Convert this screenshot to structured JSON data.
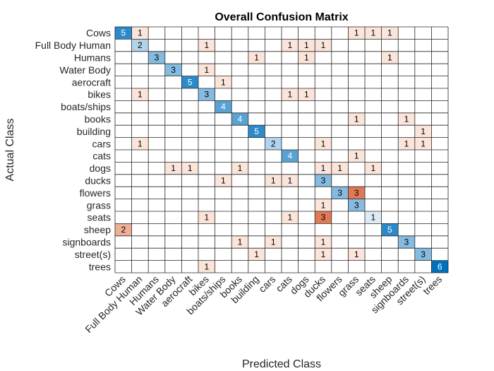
{
  "chart_data": {
    "type": "heatmap",
    "title": "Overall Confusion Matrix",
    "xlabel": "Predicted Class",
    "ylabel": "Actual Class",
    "classes": [
      "Cows",
      "Full Body Human",
      "Humans",
      "Water Body",
      "aerocraft",
      "bikes",
      "boats/ships",
      "books",
      "building",
      "cars",
      "cats",
      "dogs",
      "ducks",
      "flowers",
      "grass",
      "seats",
      "sheep",
      "signboards",
      "street(s)",
      "trees"
    ],
    "grid": true,
    "colors": {
      "diagonal_max": "#0072bd",
      "diagonal_min": "#deebf7",
      "offdiag_low": "#fbe4da",
      "offdiag_high": "#e07a55"
    },
    "matrix": [
      [
        5,
        1,
        0,
        0,
        0,
        0,
        0,
        0,
        0,
        0,
        0,
        0,
        0,
        0,
        1,
        1,
        1,
        0,
        0,
        0
      ],
      [
        0,
        2,
        0,
        0,
        0,
        1,
        0,
        0,
        0,
        0,
        1,
        1,
        1,
        0,
        0,
        0,
        0,
        0,
        0,
        0
      ],
      [
        0,
        0,
        3,
        0,
        0,
        0,
        0,
        0,
        1,
        0,
        0,
        1,
        0,
        0,
        0,
        0,
        1,
        0,
        0,
        0
      ],
      [
        0,
        0,
        0,
        3,
        0,
        1,
        0,
        0,
        0,
        0,
        0,
        0,
        0,
        0,
        0,
        0,
        0,
        0,
        0,
        0
      ],
      [
        0,
        0,
        0,
        0,
        5,
        0,
        1,
        0,
        0,
        0,
        0,
        0,
        0,
        0,
        0,
        0,
        0,
        0,
        0,
        0
      ],
      [
        0,
        1,
        0,
        0,
        0,
        3,
        0,
        0,
        0,
        0,
        1,
        1,
        0,
        0,
        0,
        0,
        0,
        0,
        0,
        0
      ],
      [
        0,
        0,
        0,
        0,
        0,
        0,
        4,
        0,
        0,
        0,
        0,
        0,
        0,
        0,
        0,
        0,
        0,
        0,
        0,
        0
      ],
      [
        0,
        0,
        0,
        0,
        0,
        0,
        0,
        4,
        0,
        0,
        0,
        0,
        0,
        0,
        1,
        0,
        0,
        1,
        0,
        0
      ],
      [
        0,
        0,
        0,
        0,
        0,
        0,
        0,
        0,
        5,
        0,
        0,
        0,
        0,
        0,
        0,
        0,
        0,
        0,
        1,
        0
      ],
      [
        0,
        1,
        0,
        0,
        0,
        0,
        0,
        0,
        0,
        2,
        0,
        0,
        1,
        0,
        0,
        0,
        0,
        1,
        1,
        0
      ],
      [
        0,
        0,
        0,
        0,
        0,
        0,
        0,
        0,
        0,
        0,
        4,
        0,
        0,
        0,
        1,
        0,
        0,
        0,
        0,
        0
      ],
      [
        0,
        0,
        0,
        1,
        1,
        0,
        0,
        1,
        0,
        0,
        0,
        0,
        1,
        1,
        0,
        1,
        0,
        0,
        0,
        0
      ],
      [
        0,
        0,
        0,
        0,
        0,
        0,
        1,
        0,
        0,
        1,
        1,
        0,
        3,
        0,
        0,
        0,
        0,
        0,
        0,
        0
      ],
      [
        0,
        0,
        0,
        0,
        0,
        0,
        0,
        0,
        0,
        0,
        0,
        0,
        0,
        3,
        3,
        0,
        0,
        0,
        0,
        0
      ],
      [
        0,
        0,
        0,
        0,
        0,
        0,
        0,
        0,
        0,
        0,
        0,
        0,
        1,
        0,
        3,
        0,
        0,
        0,
        0,
        0
      ],
      [
        0,
        0,
        0,
        0,
        0,
        1,
        0,
        0,
        0,
        0,
        1,
        0,
        3,
        0,
        0,
        1,
        0,
        0,
        0,
        0
      ],
      [
        2,
        0,
        0,
        0,
        0,
        0,
        0,
        0,
        0,
        0,
        0,
        0,
        0,
        0,
        0,
        0,
        5,
        0,
        0,
        0
      ],
      [
        0,
        0,
        0,
        0,
        0,
        0,
        0,
        1,
        0,
        1,
        0,
        0,
        1,
        0,
        0,
        0,
        0,
        3,
        0,
        0
      ],
      [
        0,
        0,
        0,
        0,
        0,
        0,
        0,
        0,
        1,
        0,
        0,
        0,
        1,
        0,
        1,
        0,
        0,
        0,
        3,
        0
      ],
      [
        0,
        0,
        0,
        0,
        0,
        1,
        0,
        0,
        0,
        0,
        0,
        0,
        0,
        0,
        0,
        0,
        0,
        0,
        0,
        6
      ]
    ]
  }
}
